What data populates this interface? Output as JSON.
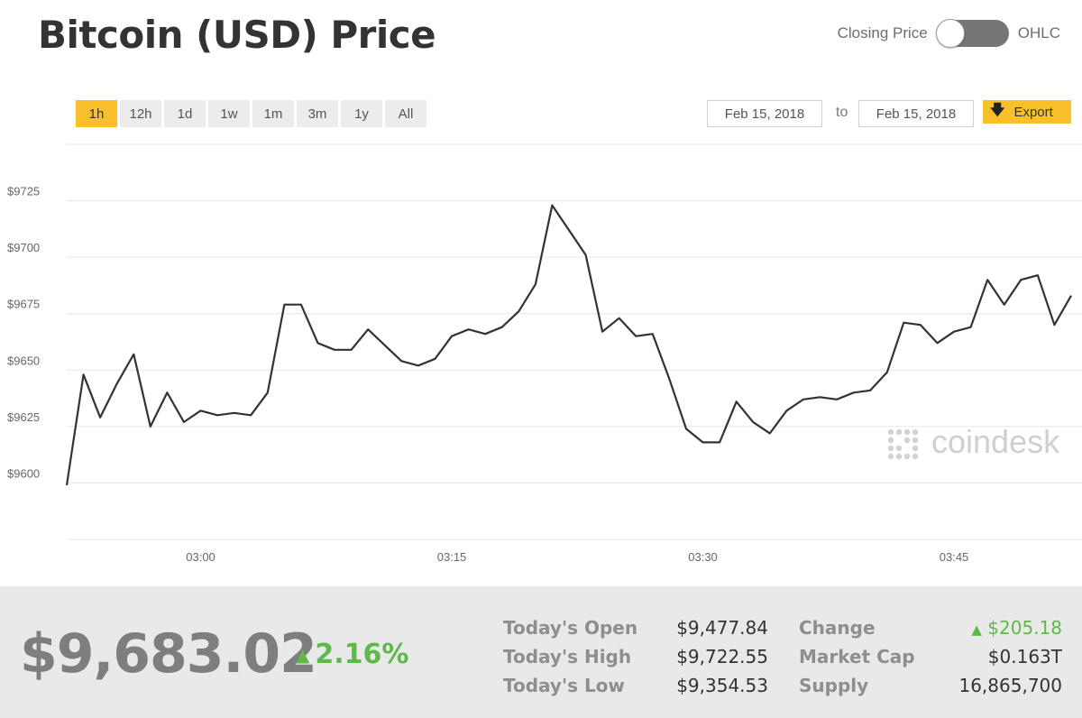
{
  "header": {
    "title": "Bitcoin (USD) Price",
    "toggle_left_label": "Closing Price",
    "toggle_right_label": "OHLC"
  },
  "toolbar": {
    "ranges": [
      "1h",
      "12h",
      "1d",
      "1w",
      "1m",
      "3m",
      "1y",
      "All"
    ],
    "active_range": "1h",
    "date_from": "Feb 15, 2018",
    "date_to": "Feb 15, 2018",
    "to_label": "to",
    "export_label": "Export",
    "accent_color": "#f8c02a"
  },
  "watermark": "coindesk",
  "chart_data": {
    "type": "line",
    "title": "",
    "xlabel": "",
    "ylabel": "",
    "x_start": "02:52",
    "x_end": "03:52",
    "x_ticks": [
      {
        "label": "03:00",
        "minute": 8
      },
      {
        "label": "03:15",
        "minute": 23
      },
      {
        "label": "03:30",
        "minute": 38
      },
      {
        "label": "03:45",
        "minute": 53
      }
    ],
    "y_ticks": [
      {
        "label": "$9600",
        "value": 9600
      },
      {
        "label": "$9625",
        "value": 9625
      },
      {
        "label": "$9650",
        "value": 9650
      },
      {
        "label": "$9675",
        "value": 9675
      },
      {
        "label": "$9700",
        "value": 9700
      },
      {
        "label": "$9725",
        "value": 9725
      }
    ],
    "ylim": [
      9575,
      9750
    ],
    "grid": true,
    "line_color": "#333333",
    "x": [
      0,
      1,
      2,
      3,
      4,
      5,
      6,
      7,
      8,
      9,
      10,
      11,
      12,
      13,
      14,
      15,
      16,
      17,
      18,
      19,
      20,
      21,
      22,
      23,
      24,
      25,
      26,
      27,
      28,
      29,
      30,
      31,
      32,
      33,
      34,
      35,
      36,
      37,
      38,
      39,
      40,
      41,
      42,
      43,
      44,
      45,
      46,
      47,
      48,
      49,
      50,
      51,
      52,
      53,
      54,
      55,
      56,
      57,
      58,
      59,
      60
    ],
    "values": [
      9599,
      9648,
      9629,
      9644,
      9657,
      9625,
      9640,
      9627,
      9632,
      9630,
      9631,
      9630,
      9640,
      9679,
      9679,
      9662,
      9659,
      9659,
      9668,
      9661,
      9654,
      9652,
      9655,
      9665,
      9668,
      9666,
      9669,
      9676,
      9688,
      9723,
      9712,
      9701,
      9667,
      9673,
      9665,
      9666,
      9646,
      9624,
      9618,
      9618,
      9636,
      9627,
      9622,
      9632,
      9637,
      9638,
      9637,
      9640,
      9641,
      9649,
      9671,
      9670,
      9662,
      9667,
      9669,
      9690,
      9679,
      9690,
      9692,
      9670,
      9683
    ]
  },
  "summary": {
    "current_price": "$9,683.02",
    "percent_change": "2.16%",
    "up_color": "#5fb84a",
    "stats": [
      {
        "label": "Today's Open",
        "value": "$9,477.84"
      },
      {
        "label": "Today's High",
        "value": "$9,722.55"
      },
      {
        "label": "Today's Low",
        "value": "$9,354.53"
      },
      {
        "label": "Change",
        "value": "$205.18"
      },
      {
        "label": "Market Cap",
        "value": "$0.163T"
      },
      {
        "label": "Supply",
        "value": "16,865,700"
      }
    ]
  }
}
